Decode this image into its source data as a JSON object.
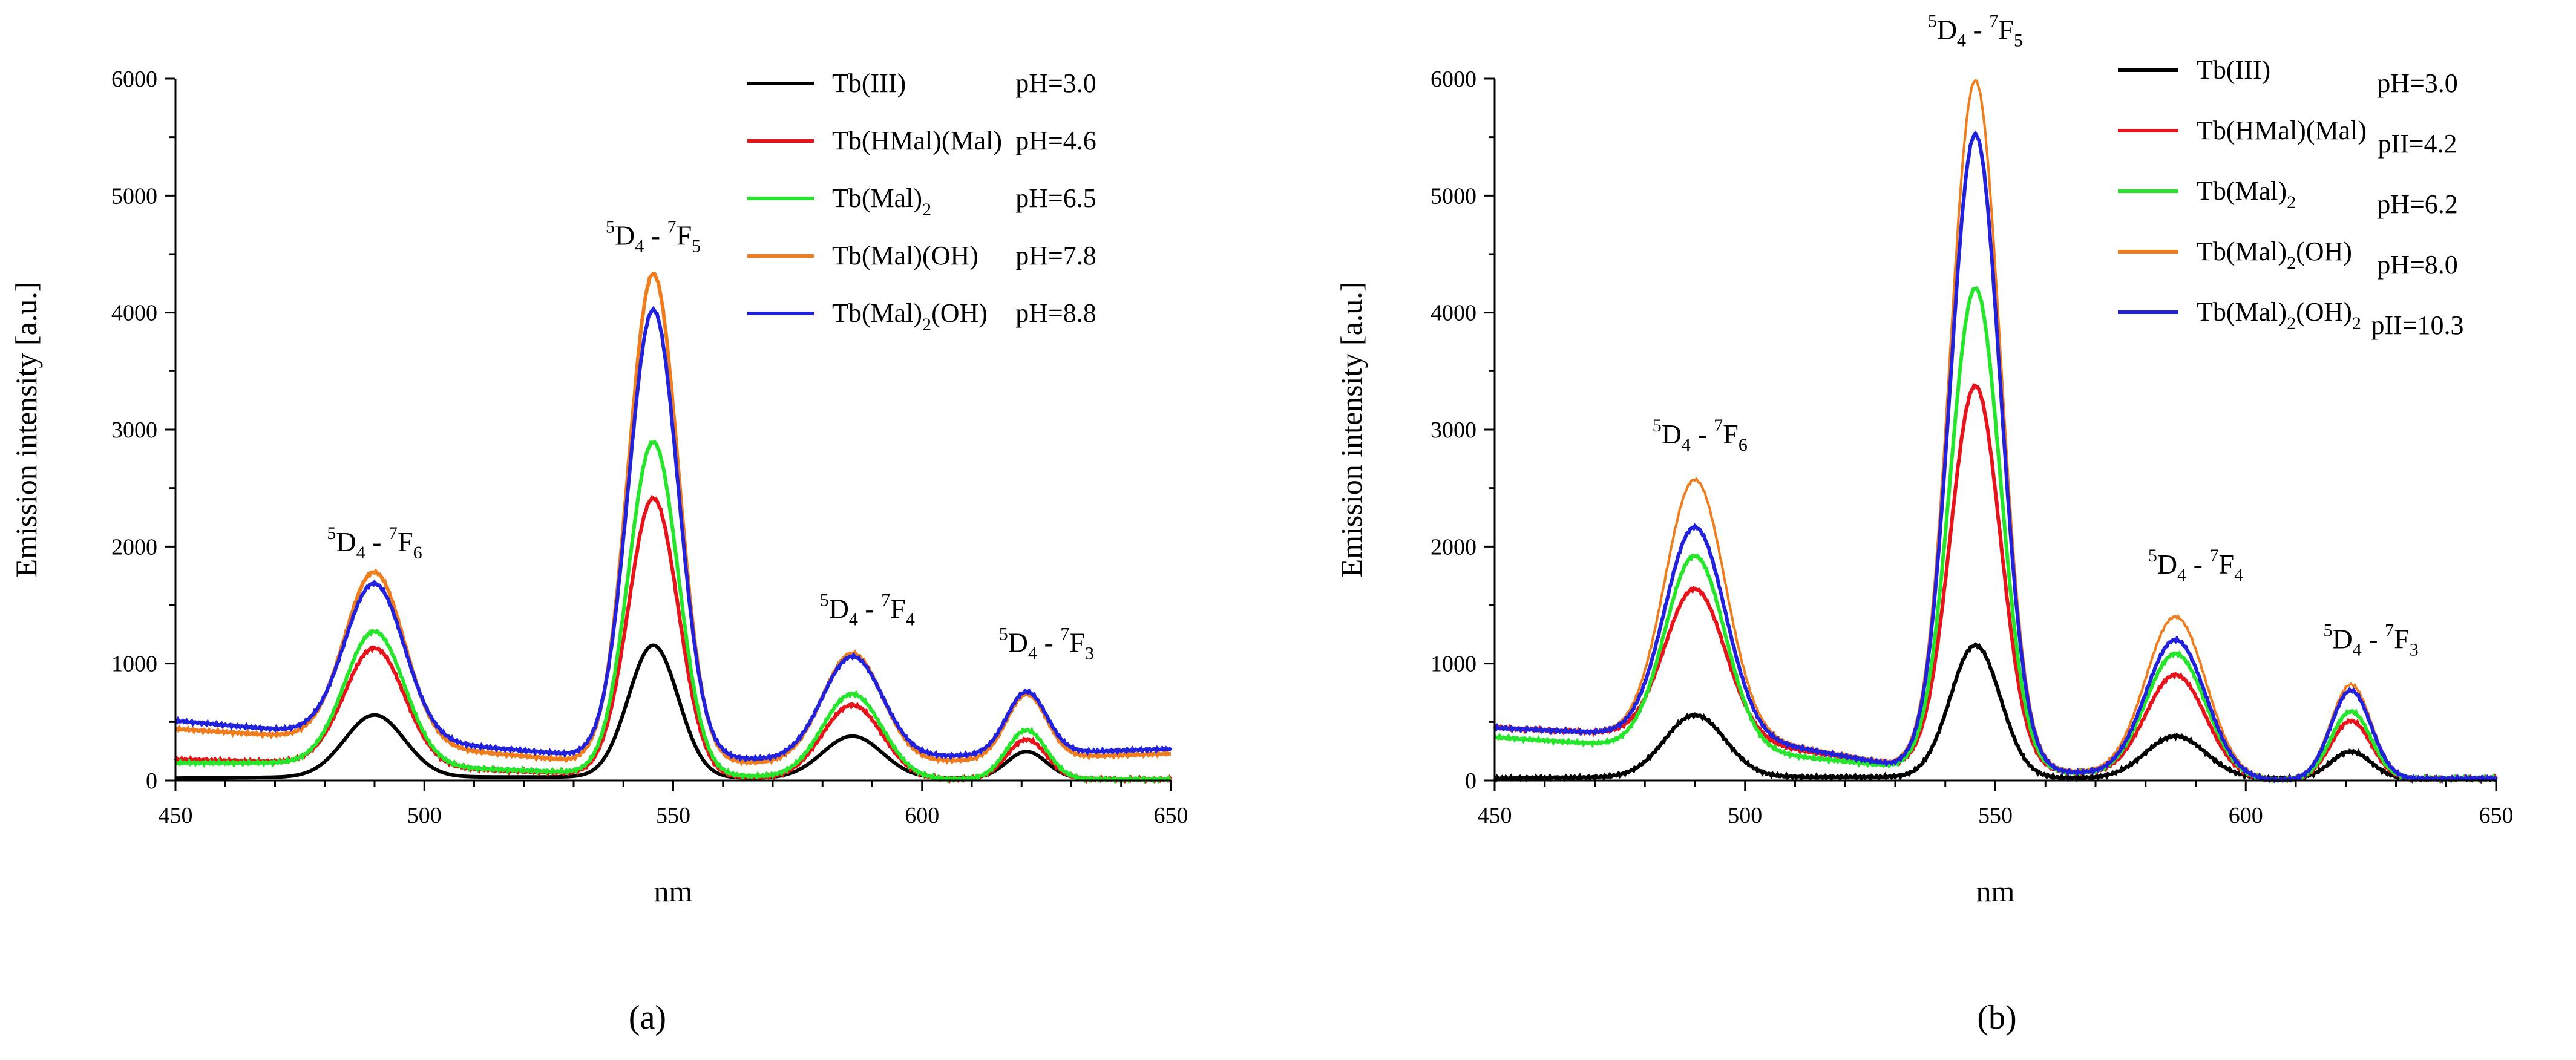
{
  "chart_data": [
    {
      "type": "line",
      "panel_label": "(a)",
      "xlabel": "nm",
      "ylabel": "Emission intensity [a.u.]",
      "xlim": [
        450,
        650
      ],
      "ylim": [
        0,
        6000
      ],
      "xticks": [
        450,
        500,
        550,
        600,
        650
      ],
      "yticks": [
        0,
        1000,
        2000,
        3000,
        4000,
        5000,
        6000
      ],
      "annotations": [
        {
          "x": 490,
          "y": 1960,
          "pre": "5",
          "a": "D",
          "as": "4",
          "mid": " - ",
          "post": "7",
          "b": "F",
          "bs": "6"
        },
        {
          "x": 546,
          "y": 4580,
          "pre": "5",
          "a": "D",
          "as": "4",
          "mid": " - ",
          "post": "7",
          "b": "F",
          "bs": "5"
        },
        {
          "x": 589,
          "y": 1390,
          "pre": "5",
          "a": "D",
          "as": "4",
          "mid": " - ",
          "post": "7",
          "b": "F",
          "bs": "4"
        },
        {
          "x": 625,
          "y": 1100,
          "pre": "5",
          "a": "D",
          "as": "4",
          "mid": " - ",
          "post": "7",
          "b": "F",
          "bs": "3"
        }
      ],
      "series": [
        {
          "name": "Tb(III)",
          "name_sub": "",
          "name_tail": "",
          "ph": "pH=3.0",
          "color": "#000000",
          "baseline": [
            [
              450,
              20
            ],
            [
              480,
              30
            ],
            [
              530,
              30
            ],
            [
              570,
              20
            ],
            [
              650,
              15
            ]
          ],
          "peaks": [
            [
              490,
              530,
              6
            ],
            [
              546,
              1130,
              5
            ],
            [
              586,
              360,
              6
            ],
            [
              621,
              230,
              4
            ]
          ]
        },
        {
          "name": "Tb(HMal)(Mal)",
          "name_sub": "",
          "name_tail": "",
          "ph": "pH=4.6",
          "color": "#e8141b",
          "baseline": [
            [
              450,
              180
            ],
            [
              480,
              150
            ],
            [
              530,
              60
            ],
            [
              570,
              20
            ],
            [
              600,
              10
            ],
            [
              650,
              10
            ]
          ],
          "peaks": [
            [
              490,
              1000,
              6
            ],
            [
              546,
              2370,
              5
            ],
            [
              586,
              630,
              6
            ],
            [
              621,
              340,
              4
            ]
          ]
        },
        {
          "name": "Tb(Mal)",
          "name_sub": "2",
          "name_tail": "",
          "ph": "pH=6.5",
          "color": "#25e62b",
          "baseline": [
            [
              450,
              150
            ],
            [
              480,
              150
            ],
            [
              530,
              70
            ],
            [
              570,
              30
            ],
            [
              600,
              10
            ],
            [
              650,
              10
            ]
          ],
          "peaks": [
            [
              490,
              1140,
              6
            ],
            [
              546,
              2840,
              5
            ],
            [
              586,
              720,
              6
            ],
            [
              621,
              420,
              4
            ]
          ]
        },
        {
          "name": "Tb(Mal)(OH)",
          "name_sub": "",
          "name_tail": "",
          "ph": "pH=7.8",
          "color": "#f07d1d",
          "baseline": [
            [
              450,
              440
            ],
            [
              480,
              360
            ],
            [
              530,
              170
            ],
            [
              570,
              150
            ],
            [
              600,
              160
            ],
            [
              650,
              230
            ]
          ],
          "peaks": [
            [
              490,
              1460,
              6
            ],
            [
              546,
              4170,
              5
            ],
            [
              586,
              930,
              6
            ],
            [
              621,
              550,
              4
            ]
          ]
        },
        {
          "name": "Tb(Mal)",
          "name_sub": "2",
          "name_tail": "(OH)",
          "ph": "pH=8.8",
          "color": "#2222dd",
          "baseline": [
            [
              450,
              510
            ],
            [
              480,
              400
            ],
            [
              530,
              220
            ],
            [
              570,
              180
            ],
            [
              600,
              200
            ],
            [
              650,
              270
            ]
          ],
          "peaks": [
            [
              490,
              1320,
              6
            ],
            [
              546,
              3820,
              5
            ],
            [
              586,
              870,
              6
            ],
            [
              621,
              530,
              4
            ]
          ]
        }
      ]
    },
    {
      "type": "line",
      "panel_label": "(b)",
      "xlabel": "nm",
      "ylabel": "Emission intensity [a.u.]",
      "xlim": [
        450,
        650
      ],
      "ylim": [
        0,
        6000
      ],
      "xticks": [
        450,
        500,
        550,
        600,
        650
      ],
      "yticks": [
        0,
        1000,
        2000,
        3000,
        4000,
        5000,
        6000
      ],
      "annotations": [
        {
          "x": 491,
          "y": 2880,
          "pre": "5",
          "a": "D",
          "as": "4",
          "mid": " - ",
          "post": "7",
          "b": "F",
          "bs": "6"
        },
        {
          "x": 546,
          "y": 6340,
          "pre": "5",
          "a": "D",
          "as": "4",
          "mid": " - ",
          "post": "7",
          "b": "F",
          "bs": "5"
        },
        {
          "x": 590,
          "y": 1770,
          "pre": "5",
          "a": "D",
          "as": "4",
          "mid": " - ",
          "post": "7",
          "b": "F",
          "bs": "4"
        },
        {
          "x": 625,
          "y": 1130,
          "pre": "5",
          "a": "D",
          "as": "4",
          "mid": " - ",
          "post": "7",
          "b": "F",
          "bs": "3"
        }
      ],
      "series": [
        {
          "name": "Tb(III)",
          "name_sub": "",
          "name_tail": "",
          "ph": "pH=3.0",
          "color": "#000000",
          "baseline": [
            [
              450,
              20
            ],
            [
              480,
              30
            ],
            [
              530,
              30
            ],
            [
              570,
              20
            ],
            [
              650,
              15
            ]
          ],
          "peaks": [
            [
              490,
              530,
              6
            ],
            [
              546,
              1130,
              5
            ],
            [
              586,
              360,
              6
            ],
            [
              621,
              230,
              4
            ]
          ]
        },
        {
          "name": "Tb(HMal)(Mal)",
          "name_sub": "",
          "name_tail": "",
          "ph": "pII=4.2",
          "color": "#e8141b",
          "baseline": [
            [
              450,
              450
            ],
            [
              475,
              400
            ],
            [
              500,
              330
            ],
            [
              530,
              130
            ],
            [
              560,
              80
            ],
            [
              580,
              30
            ],
            [
              605,
              0
            ],
            [
              620,
              10
            ],
            [
              650,
              20
            ]
          ],
          "peaks": [
            [
              490,
              1280,
              6
            ],
            [
              546,
              3270,
              5
            ],
            [
              586,
              880,
              6
            ],
            [
              621,
              500,
              4
            ]
          ]
        },
        {
          "name": "Tb(Mal)",
          "name_sub": "2",
          "name_tail": "",
          "ph": "pH=6.2",
          "color": "#25e62b",
          "baseline": [
            [
              450,
              370
            ],
            [
              475,
              300
            ],
            [
              500,
              250
            ],
            [
              530,
              120
            ],
            [
              560,
              80
            ],
            [
              580,
              30
            ],
            [
              605,
              0
            ],
            [
              620,
              10
            ],
            [
              650,
              20
            ]
          ],
          "peaks": [
            [
              490,
              1650,
              6
            ],
            [
              546,
              4110,
              5
            ],
            [
              586,
              1060,
              6
            ],
            [
              621,
              580,
              4
            ]
          ]
        },
        {
          "name": "Tb(Mal)",
          "name_sub": "2",
          "name_tail": "(OH)",
          "ph": "pH=8.0",
          "color": "#f07d1d",
          "baseline": [
            [
              450,
              450
            ],
            [
              475,
              400
            ],
            [
              500,
              370
            ],
            [
              530,
              140
            ],
            [
              560,
              90
            ],
            [
              580,
              40
            ],
            [
              605,
              0
            ],
            [
              620,
              10
            ],
            [
              650,
              20
            ]
          ],
          "peaks": [
            [
              490,
              2190,
              6
            ],
            [
              546,
              5870,
              5
            ],
            [
              586,
              1370,
              6
            ],
            [
              621,
              810,
              4
            ]
          ]
        },
        {
          "name": "Tb(Mal)",
          "name_sub": "2",
          "name_tail": "(OH)",
          "name_sub2": "2",
          "ph": "pII=10.3",
          "color": "#2222dd",
          "baseline": [
            [
              450,
              450
            ],
            [
              475,
              400
            ],
            [
              500,
              360
            ],
            [
              530,
              130
            ],
            [
              560,
              80
            ],
            [
              580,
              30
            ],
            [
              605,
              0
            ],
            [
              620,
              10
            ],
            [
              650,
              20
            ]
          ],
          "peaks": [
            [
              490,
              1790,
              6
            ],
            [
              546,
              5420,
              5
            ],
            [
              586,
              1180,
              6
            ],
            [
              621,
              760,
              4
            ]
          ]
        }
      ]
    }
  ]
}
